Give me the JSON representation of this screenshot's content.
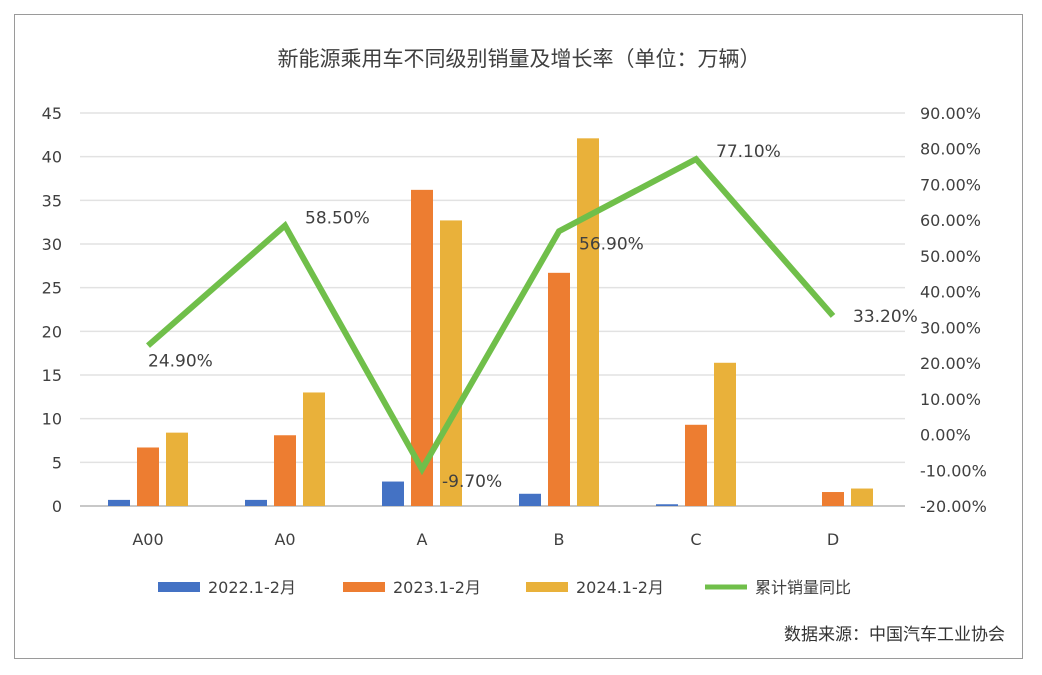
{
  "chart_data": {
    "type": "bar+line",
    "title": "新能源乘用车不同级别销量及增长率（单位：万辆）",
    "categories": [
      "A00",
      "A0",
      "A",
      "B",
      "C",
      "D"
    ],
    "series": [
      {
        "name": "2022.1-2月",
        "type": "bar",
        "color": "#4472c4",
        "values": [
          0.7,
          0.7,
          2.8,
          1.4,
          0.2,
          0
        ]
      },
      {
        "name": "2023.1-2月",
        "type": "bar",
        "color": "#ed7d31",
        "values": [
          6.7,
          8.1,
          36.2,
          26.7,
          9.3,
          1.6
        ]
      },
      {
        "name": "2024.1-2月",
        "type": "bar",
        "color": "#e9b13a",
        "values": [
          8.4,
          13.0,
          32.7,
          42.1,
          16.4,
          2.0
        ]
      },
      {
        "name": "累计销量同比",
        "type": "line",
        "axis": "right",
        "color": "#70bf4a",
        "values": [
          24.9,
          58.5,
          -9.7,
          56.9,
          77.1,
          33.2
        ],
        "labels": [
          "24.90%",
          "58.50%",
          "-9.70%",
          "56.90%",
          "77.10%",
          "33.20%"
        ]
      }
    ],
    "ylim": [
      0,
      45
    ],
    "yticks": [
      0,
      5,
      10,
      15,
      20,
      25,
      30,
      35,
      40,
      45
    ],
    "y2lim": [
      -20,
      90
    ],
    "y2ticks": [
      "-20.00%",
      "-10.00%",
      "0.00%",
      "10.00%",
      "20.00%",
      "30.00%",
      "40.00%",
      "50.00%",
      "60.00%",
      "70.00%",
      "80.00%",
      "90.00%"
    ],
    "grid": true,
    "legend": "bottom"
  },
  "source": "数据来源：中国汽车工业协会"
}
